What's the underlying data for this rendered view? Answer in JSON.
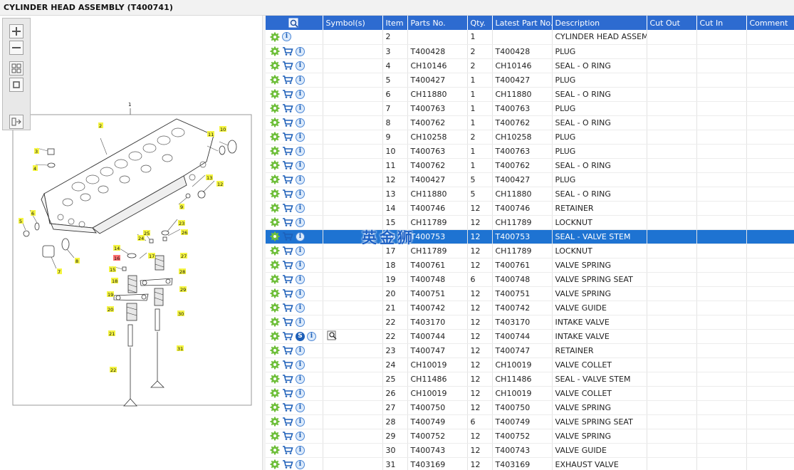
{
  "header": {
    "title": "CYLINDER HEAD ASSEMBLY (T400741)"
  },
  "toolbar": {
    "buttons": [
      "zoom-in-icon",
      "zoom-out-icon",
      "fit-grid-icon",
      "fit-page-icon",
      "expand-panel-icon"
    ]
  },
  "diagram": {
    "callouts": [
      "1",
      "2",
      "3",
      "4",
      "5",
      "6",
      "7",
      "8",
      "9",
      "10",
      "11",
      "12",
      "13",
      "14",
      "15",
      "16",
      "17",
      "18",
      "19",
      "20",
      "21",
      "22",
      "23",
      "24",
      "25",
      "26",
      "27",
      "28",
      "29",
      "30",
      "31"
    ],
    "highlighted_callout": "16"
  },
  "grid": {
    "columns": [
      "",
      "Symbol(s)",
      "Item",
      "Parts No.",
      "Qty.",
      "Latest Part No.",
      "Description",
      "Cut Out",
      "Cut In",
      "Comment"
    ],
    "selected_index": 14,
    "rows": [
      {
        "item": "2",
        "part": "",
        "qty": "1",
        "latest": "",
        "desc": "CYLINDER HEAD ASSEMBLY",
        "cart": false,
        "s": false
      },
      {
        "item": "3",
        "part": "T400428",
        "qty": "2",
        "latest": "T400428",
        "desc": "PLUG",
        "cart": true,
        "s": false
      },
      {
        "item": "4",
        "part": "CH10146",
        "qty": "2",
        "latest": "CH10146",
        "desc": "SEAL - O RING",
        "cart": true,
        "s": false
      },
      {
        "item": "5",
        "part": "T400427",
        "qty": "1",
        "latest": "T400427",
        "desc": "PLUG",
        "cart": true,
        "s": false
      },
      {
        "item": "6",
        "part": "CH11880",
        "qty": "1",
        "latest": "CH11880",
        "desc": "SEAL - O RING",
        "cart": true,
        "s": false
      },
      {
        "item": "7",
        "part": "T400763",
        "qty": "1",
        "latest": "T400763",
        "desc": "PLUG",
        "cart": true,
        "s": false
      },
      {
        "item": "8",
        "part": "T400762",
        "qty": "1",
        "latest": "T400762",
        "desc": "SEAL - O RING",
        "cart": true,
        "s": false
      },
      {
        "item": "9",
        "part": "CH10258",
        "qty": "2",
        "latest": "CH10258",
        "desc": "PLUG",
        "cart": true,
        "s": false
      },
      {
        "item": "10",
        "part": "T400763",
        "qty": "1",
        "latest": "T400763",
        "desc": "PLUG",
        "cart": true,
        "s": false
      },
      {
        "item": "11",
        "part": "T400762",
        "qty": "1",
        "latest": "T400762",
        "desc": "SEAL - O RING",
        "cart": true,
        "s": false
      },
      {
        "item": "12",
        "part": "T400427",
        "qty": "5",
        "latest": "T400427",
        "desc": "PLUG",
        "cart": true,
        "s": false
      },
      {
        "item": "13",
        "part": "CH11880",
        "qty": "5",
        "latest": "CH11880",
        "desc": "SEAL - O RING",
        "cart": true,
        "s": false
      },
      {
        "item": "14",
        "part": "T400746",
        "qty": "12",
        "latest": "T400746",
        "desc": "RETAINER",
        "cart": true,
        "s": false
      },
      {
        "item": "15",
        "part": "CH11789",
        "qty": "12",
        "latest": "CH11789",
        "desc": "LOCKNUT",
        "cart": true,
        "s": false
      },
      {
        "item": "16",
        "part": "T400753",
        "qty": "12",
        "latest": "T400753",
        "desc": "SEAL - VALVE STEM",
        "cart": true,
        "s": false
      },
      {
        "item": "17",
        "part": "CH11789",
        "qty": "12",
        "latest": "CH11789",
        "desc": "LOCKNUT",
        "cart": true,
        "s": false
      },
      {
        "item": "18",
        "part": "T400761",
        "qty": "12",
        "latest": "T400761",
        "desc": "VALVE SPRING",
        "cart": true,
        "s": false
      },
      {
        "item": "19",
        "part": "T400748",
        "qty": "6",
        "latest": "T400748",
        "desc": "VALVE SPRING SEAT",
        "cart": true,
        "s": false
      },
      {
        "item": "20",
        "part": "T400751",
        "qty": "12",
        "latest": "T400751",
        "desc": "VALVE SPRING",
        "cart": true,
        "s": false
      },
      {
        "item": "21",
        "part": "T400742",
        "qty": "12",
        "latest": "T400742",
        "desc": "VALVE GUIDE",
        "cart": true,
        "s": false
      },
      {
        "item": "22",
        "part": "T403170",
        "qty": "12",
        "latest": "T403170",
        "desc": "INTAKE VALVE",
        "cart": true,
        "s": false
      },
      {
        "item": "22",
        "part": "T400744",
        "qty": "12",
        "latest": "T400744",
        "desc": "INTAKE VALVE",
        "cart": true,
        "s": true
      },
      {
        "item": "23",
        "part": "T400747",
        "qty": "12",
        "latest": "T400747",
        "desc": "RETAINER",
        "cart": true,
        "s": false
      },
      {
        "item": "24",
        "part": "CH10019",
        "qty": "12",
        "latest": "CH10019",
        "desc": "VALVE COLLET",
        "cart": true,
        "s": false
      },
      {
        "item": "25",
        "part": "CH11486",
        "qty": "12",
        "latest": "CH11486",
        "desc": "SEAL - VALVE STEM",
        "cart": true,
        "s": false
      },
      {
        "item": "26",
        "part": "CH10019",
        "qty": "12",
        "latest": "CH10019",
        "desc": "VALVE COLLET",
        "cart": true,
        "s": false
      },
      {
        "item": "27",
        "part": "T400750",
        "qty": "12",
        "latest": "T400750",
        "desc": "VALVE SPRING",
        "cart": true,
        "s": false
      },
      {
        "item": "28",
        "part": "T400749",
        "qty": "6",
        "latest": "T400749",
        "desc": "VALVE SPRING SEAT",
        "cart": true,
        "s": false
      },
      {
        "item": "29",
        "part": "T400752",
        "qty": "12",
        "latest": "T400752",
        "desc": "VALVE SPRING",
        "cart": true,
        "s": false
      },
      {
        "item": "30",
        "part": "T400743",
        "qty": "12",
        "latest": "T400743",
        "desc": "VALVE GUIDE",
        "cart": true,
        "s": false
      },
      {
        "item": "31",
        "part": "T403169",
        "qty": "12",
        "latest": "T403169",
        "desc": "EXHAUST VALVE",
        "cart": true,
        "s": false
      }
    ]
  },
  "symbols": {
    "s_label": "S"
  },
  "watermark": "英金狮",
  "colors": {
    "header_blue": "#2d6bd0",
    "selected_row": "#1e73d2",
    "callout_yellow": "#f5f542",
    "callout_red": "#ff6f6f"
  }
}
